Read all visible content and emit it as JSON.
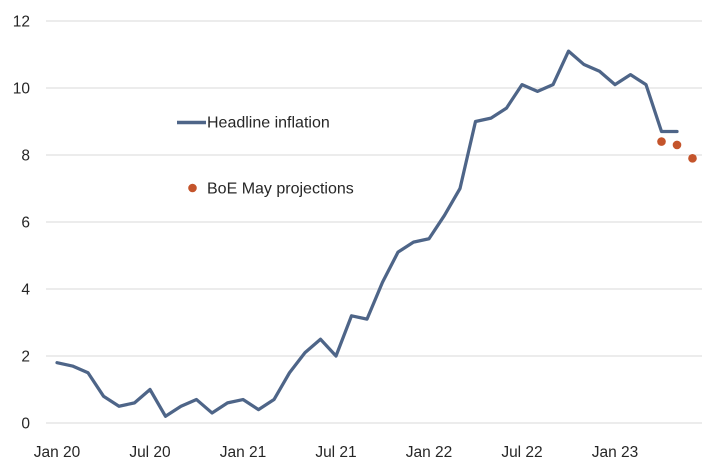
{
  "chart": {
    "background_color": "#ffffff",
    "grid_color": "#d9d9d9",
    "text_color": "#262626"
  },
  "chart_data": {
    "type": "line",
    "title": "",
    "xlabel": "",
    "ylabel": "",
    "grid": "horizontal-only",
    "legend_position": "inside-upper-left",
    "y_axis": {
      "range": [
        0,
        12
      ],
      "ticks": [
        0,
        2,
        4,
        6,
        8,
        10,
        12
      ]
    },
    "x_axis": {
      "unit": "month (0 = Jan 2020)",
      "ticks": [
        {
          "label": "Jan 20",
          "month": 0
        },
        {
          "label": "Jul 20",
          "month": 6
        },
        {
          "label": "Jan 21",
          "month": 12
        },
        {
          "label": "Jul 21",
          "month": 18
        },
        {
          "label": "Jan 22",
          "month": 24
        },
        {
          "label": "Jul 22",
          "month": 30
        },
        {
          "label": "Jan 23",
          "month": 36
        }
      ]
    },
    "series": [
      {
        "name": "Headline inflation",
        "type": "line",
        "color": "#4e6588",
        "start_month": 0,
        "values": [
          1.8,
          1.7,
          1.5,
          0.8,
          0.5,
          0.6,
          1.0,
          0.2,
          0.5,
          0.7,
          0.3,
          0.6,
          0.7,
          0.4,
          0.7,
          1.5,
          2.1,
          2.5,
          2.0,
          3.2,
          3.1,
          4.2,
          5.1,
          5.4,
          5.5,
          6.2,
          7.0,
          9.0,
          9.1,
          9.4,
          10.1,
          9.9,
          10.1,
          11.1,
          10.7,
          10.5,
          10.1,
          10.4,
          10.1,
          8.7,
          8.7
        ]
      },
      {
        "name": "BoE May projections",
        "type": "scatter",
        "color": "#c4542b",
        "points": [
          {
            "month": 39,
            "value": 8.4
          },
          {
            "month": 40,
            "value": 8.3
          },
          {
            "month": 41,
            "value": 7.9
          }
        ]
      }
    ]
  }
}
